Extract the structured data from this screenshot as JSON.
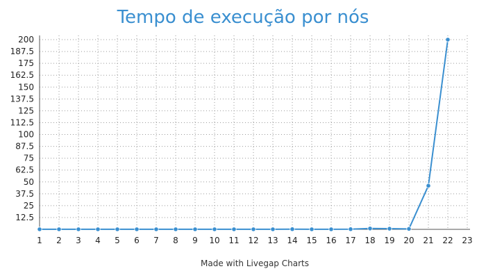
{
  "chart_data": {
    "type": "line",
    "title": "Tempo de execução por nós",
    "xlabel": "",
    "ylabel": "",
    "x": [
      1,
      2,
      3,
      4,
      5,
      6,
      7,
      8,
      9,
      10,
      11,
      12,
      13,
      14,
      15,
      16,
      17,
      18,
      19,
      20,
      21,
      22
    ],
    "series": [
      {
        "values": [
          0.1,
          0.1,
          0.1,
          0.1,
          0.1,
          0.1,
          0.1,
          0.1,
          0.1,
          0.1,
          0.1,
          0.1,
          0.1,
          0.2,
          0.1,
          0.1,
          0.2,
          0.9,
          0.7,
          0.5,
          46,
          200
        ]
      }
    ],
    "xlim": [
      1,
      23
    ],
    "ylim": [
      0,
      200
    ],
    "x_ticks": [
      "1",
      "2",
      "3",
      "4",
      "5",
      "6",
      "7",
      "8",
      "9",
      "10",
      "11",
      "12",
      "13",
      "14",
      "15",
      "16",
      "17",
      "18",
      "19",
      "20",
      "21",
      "22",
      "23"
    ],
    "y_ticks": [
      "12.5",
      "25",
      "37.5",
      "50",
      "62.5",
      "75",
      "87.5",
      "100",
      "112.5",
      "125",
      "137.5",
      "150",
      "162.5",
      "175",
      "187.5",
      "200"
    ],
    "grid": true,
    "line_color": "#3a8fd0"
  },
  "credit": "Made with Livegap Charts"
}
